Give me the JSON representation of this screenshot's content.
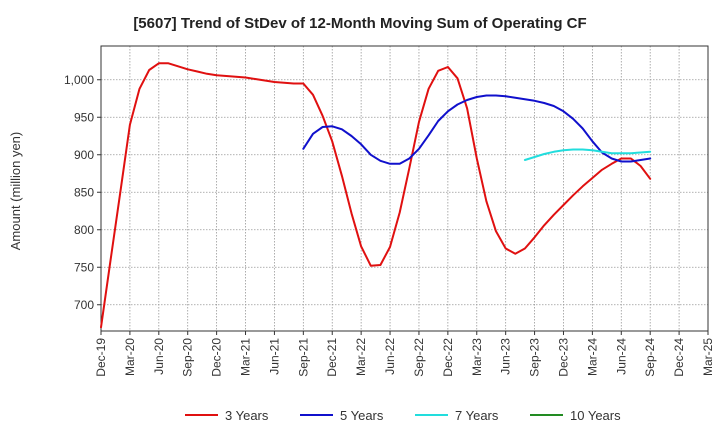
{
  "chart_data": {
    "type": "line",
    "title": "[5607]  Trend of StDev of 12-Month Moving Sum of Operating CF",
    "ylabel": "Amount (million yen)",
    "xlabel": "",
    "ylim": [
      665,
      1045
    ],
    "yticks": [
      700,
      750,
      800,
      850,
      900,
      950,
      1000
    ],
    "ytick_labels": [
      "700",
      "750",
      "800",
      "850",
      "900",
      "950",
      "1,000"
    ],
    "x_months": [
      "2019-12",
      "2025-03"
    ],
    "xticks": [
      "Dec-19",
      "Mar-20",
      "Jun-20",
      "Sep-20",
      "Dec-20",
      "Mar-21",
      "Jun-21",
      "Sep-21",
      "Dec-21",
      "Mar-22",
      "Jun-22",
      "Sep-22",
      "Dec-22",
      "Mar-23",
      "Jun-23",
      "Sep-23",
      "Dec-23",
      "Mar-24",
      "Jun-24",
      "Sep-24",
      "Dec-24",
      "Mar-25"
    ],
    "grid": true,
    "legend_position": "bottom",
    "series": [
      {
        "name": "3 Years",
        "color": "#e01010",
        "x": [
          "2019-12",
          "2020-01",
          "2020-02",
          "2020-03",
          "2020-04",
          "2020-05",
          "2020-06",
          "2020-07",
          "2020-08",
          "2020-09",
          "2020-10",
          "2020-11",
          "2020-12",
          "2021-01",
          "2021-02",
          "2021-03",
          "2021-04",
          "2021-05",
          "2021-06",
          "2021-07",
          "2021-08",
          "2021-09",
          "2021-10",
          "2021-11",
          "2021-12",
          "2022-01",
          "2022-02",
          "2022-03",
          "2022-04",
          "2022-05",
          "2022-06",
          "2022-07",
          "2022-08",
          "2022-09",
          "2022-10",
          "2022-11",
          "2022-12",
          "2023-01",
          "2023-02",
          "2023-03",
          "2023-04",
          "2023-05",
          "2023-06",
          "2023-07",
          "2023-08",
          "2023-09",
          "2023-10",
          "2023-11",
          "2023-12",
          "2024-01",
          "2024-02",
          "2024-03",
          "2024-04",
          "2024-05",
          "2024-06",
          "2024-07",
          "2024-08",
          "2024-09"
        ],
        "values": [
          670,
          760,
          850,
          940,
          988,
          1013,
          1022,
          1022,
          1018,
          1014,
          1011,
          1008,
          1006,
          1005,
          1004,
          1003,
          1001,
          999,
          997,
          996,
          995,
          995,
          980,
          952,
          918,
          872,
          822,
          778,
          752,
          753,
          777,
          823,
          882,
          944,
          988,
          1012,
          1017,
          1002,
          962,
          895,
          838,
          798,
          775,
          768,
          775,
          790,
          806,
          820,
          833,
          846,
          858,
          869,
          880,
          888,
          895,
          895,
          885,
          868
        ]
      },
      {
        "name": "5 Years",
        "color": "#1010cc",
        "x": [
          "2021-09",
          "2021-10",
          "2021-11",
          "2021-12",
          "2022-01",
          "2022-02",
          "2022-03",
          "2022-04",
          "2022-05",
          "2022-06",
          "2022-07",
          "2022-08",
          "2022-09",
          "2022-10",
          "2022-11",
          "2022-12",
          "2023-01",
          "2023-02",
          "2023-03",
          "2023-04",
          "2023-05",
          "2023-06",
          "2023-07",
          "2023-08",
          "2023-09",
          "2023-10",
          "2023-11",
          "2023-12",
          "2024-01",
          "2024-02",
          "2024-03",
          "2024-04",
          "2024-05",
          "2024-06",
          "2024-07",
          "2024-08",
          "2024-09"
        ],
        "values": [
          908,
          928,
          937,
          938,
          934,
          925,
          914,
          900,
          892,
          888,
          888,
          895,
          908,
          926,
          945,
          958,
          967,
          973,
          977,
          979,
          979,
          978,
          976,
          974,
          972,
          969,
          965,
          958,
          948,
          935,
          918,
          903,
          895,
          891,
          891,
          893,
          895
        ]
      },
      {
        "name": "7 Years",
        "color": "#22dddd",
        "x": [
          "2023-08",
          "2023-09",
          "2023-10",
          "2023-11",
          "2023-12",
          "2024-01",
          "2024-02",
          "2024-03",
          "2024-04",
          "2024-05",
          "2024-06",
          "2024-07",
          "2024-08",
          "2024-09"
        ],
        "values": [
          893,
          897,
          901,
          904,
          906,
          907,
          907,
          906,
          904,
          902,
          902,
          902,
          903,
          904
        ]
      },
      {
        "name": "10 Years",
        "color": "#228b22",
        "x": [],
        "values": []
      }
    ]
  }
}
